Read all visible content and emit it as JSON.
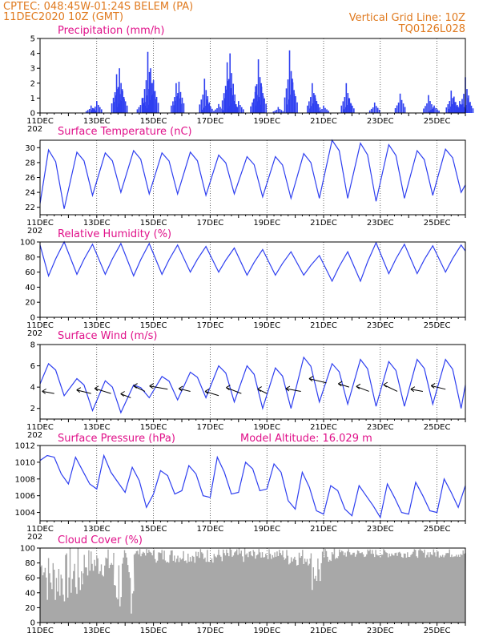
{
  "header": {
    "line1_left": "CPTEC:   048:45W-01:24S   BELEM (PA)",
    "line2_left": "11DEC2020 10Z (GMT)",
    "line1_right": "Vertical Grid Line: 10Z",
    "line2_right": "TQ0126L028"
  },
  "colors": {
    "series": "#2e3ff0",
    "cloud": "#a8a8a8",
    "title": "#e0118a",
    "header": "#e07a1f"
  },
  "x_axis": {
    "day_labels": [
      "11DEC",
      "13DEC",
      "15DEC",
      "17DEC",
      "19DEC",
      "21DEC",
      "23DEC",
      "25DEC"
    ],
    "cutoff_label": "202"
  },
  "chart_data": [
    {
      "id": "precip",
      "type": "bar",
      "title": "Precipitation (mm/h)",
      "ylim": [
        0,
        5
      ],
      "yticks": [
        0,
        1,
        2,
        3,
        4,
        5
      ],
      "days": 15,
      "peaks": [
        {
          "day": 1.8,
          "value": 0.5
        },
        {
          "day": 2.0,
          "value": 0.8
        },
        {
          "day": 2.7,
          "value": 2.6
        },
        {
          "day": 2.8,
          "value": 3.0
        },
        {
          "day": 2.9,
          "value": 1.6
        },
        {
          "day": 3.6,
          "value": 1.0
        },
        {
          "day": 3.8,
          "value": 4.1
        },
        {
          "day": 3.9,
          "value": 3.0
        },
        {
          "day": 4.0,
          "value": 2.2
        },
        {
          "day": 4.8,
          "value": 2.0
        },
        {
          "day": 4.9,
          "value": 2.1
        },
        {
          "day": 5.8,
          "value": 2.3
        },
        {
          "day": 5.9,
          "value": 0.9
        },
        {
          "day": 6.3,
          "value": 0.6
        },
        {
          "day": 6.6,
          "value": 3.4
        },
        {
          "day": 6.7,
          "value": 4.0
        },
        {
          "day": 6.8,
          "value": 1.2
        },
        {
          "day": 7.0,
          "value": 0.8
        },
        {
          "day": 7.6,
          "value": 1.8
        },
        {
          "day": 7.7,
          "value": 3.6
        },
        {
          "day": 7.8,
          "value": 2.0
        },
        {
          "day": 8.4,
          "value": 0.4
        },
        {
          "day": 8.8,
          "value": 4.2
        },
        {
          "day": 8.9,
          "value": 2.3
        },
        {
          "day": 9.6,
          "value": 2.0
        },
        {
          "day": 9.7,
          "value": 1.2
        },
        {
          "day": 10.0,
          "value": 0.5
        },
        {
          "day": 10.8,
          "value": 2.0
        },
        {
          "day": 10.9,
          "value": 1.0
        },
        {
          "day": 11.8,
          "value": 0.7
        },
        {
          "day": 12.7,
          "value": 1.3
        },
        {
          "day": 13.7,
          "value": 1.2
        },
        {
          "day": 13.9,
          "value": 0.5
        },
        {
          "day": 14.5,
          "value": 1.5
        },
        {
          "day": 14.6,
          "value": 1.1
        },
        {
          "day": 14.8,
          "value": 0.8
        },
        {
          "day": 14.9,
          "value": 0.6
        },
        {
          "day": 15.0,
          "value": 2.4
        },
        {
          "day": 15.1,
          "value": 1.0
        }
      ]
    },
    {
      "id": "temp",
      "type": "line",
      "title": "Surface Temperature (nC)",
      "ylim": [
        21,
        31
      ],
      "yticks": [
        22,
        24,
        26,
        28,
        30
      ],
      "days": 15,
      "start_value": 22.5,
      "daily_min": [
        21.8,
        23.6,
        24.0,
        23.8,
        23.8,
        23.6,
        23.8,
        23.4,
        23.2,
        23.2,
        23.2,
        22.8,
        23.2,
        23.6,
        24.0
      ],
      "daily_max": [
        29.7,
        29.4,
        29.3,
        29.6,
        29.3,
        29.4,
        29.0,
        28.8,
        28.8,
        29.2,
        31.2,
        30.6,
        30.4,
        29.6,
        29.8
      ],
      "end_value": 25.0
    },
    {
      "id": "rh",
      "type": "line",
      "title": "Relative Humidity (%)",
      "ylim": [
        0,
        100
      ],
      "yticks": [
        0,
        20,
        40,
        60,
        80,
        100
      ],
      "days": 15,
      "start_value": 96,
      "daily_min": [
        55,
        57,
        57,
        55,
        57,
        60,
        60,
        56,
        56,
        56,
        48,
        48,
        58,
        58,
        60
      ],
      "daily_max": [
        100,
        97,
        98,
        98,
        96,
        94,
        92,
        90,
        87,
        82,
        87,
        99,
        97,
        95,
        96
      ],
      "end_value": 88
    },
    {
      "id": "wind",
      "type": "line",
      "title": "Surface Wind (m/s)",
      "ylim": [
        1,
        8
      ],
      "yticks": [
        2,
        4,
        6,
        8
      ],
      "days": 15,
      "start_value": 4.3,
      "daily_min": [
        3.2,
        1.8,
        1.6,
        3.0,
        2.8,
        3.0,
        2.6,
        2.0,
        2.0,
        2.6,
        2.4,
        2.2,
        2.2,
        2.4,
        2.0
      ],
      "daily_max": [
        6.2,
        4.8,
        4.6,
        4.2,
        5.0,
        5.4,
        6.0,
        6.0,
        5.8,
        6.8,
        6.2,
        6.6,
        6.4,
        6.6,
        6.6
      ],
      "end_value": 4.2,
      "wind_vectors_day": [
        0.5,
        1.8,
        2.5,
        3.2,
        3.7,
        4.5,
        5.3,
        6.3,
        7.1,
        8.0,
        9.2,
        10.1,
        10.9,
        11.6,
        12.6,
        13.5,
        14.3
      ],
      "wind_vectors_level": [
        3.4,
        3.4,
        3.4,
        3.0,
        3.6,
        3.8,
        3.6,
        3.2,
        3.4,
        3.4,
        3.6,
        4.4,
        4.0,
        3.6,
        3.6,
        3.6,
        3.8
      ]
    },
    {
      "id": "pressure",
      "type": "line",
      "title": "Surface Pressure (hPa)",
      "subtitle": "Model Altitude: 16.029 m",
      "ylim": [
        1003,
        1012
      ],
      "yticks": [
        1004,
        1006,
        1008,
        1010,
        1012
      ],
      "days": 15,
      "samples_per_day": 4,
      "values": [
        1010.2,
        1010.8,
        1010.6,
        1008.6,
        1007.4,
        1010.6,
        1009.0,
        1007.4,
        1006.8,
        1010.8,
        1008.8,
        1007.6,
        1006.4,
        1009.4,
        1007.8,
        1004.6,
        1006.2,
        1009.0,
        1008.4,
        1006.2,
        1006.6,
        1009.6,
        1008.6,
        1006.0,
        1005.8,
        1010.6,
        1008.8,
        1006.2,
        1006.4,
        1010.0,
        1009.2,
        1006.6,
        1006.8,
        1009.8,
        1008.8,
        1005.4,
        1004.4,
        1008.8,
        1007.0,
        1004.2,
        1003.8,
        1007.2,
        1006.6,
        1004.4,
        1003.6,
        1007.2,
        1006.0,
        1004.8,
        1003.4,
        1007.4,
        1005.8,
        1004.0,
        1003.8,
        1007.6,
        1006.0,
        1004.2,
        1004.0,
        1008.0,
        1006.4,
        1004.6,
        1007.2
      ]
    },
    {
      "id": "cloud",
      "type": "area",
      "title": "Cloud Cover (%)",
      "ylim": [
        0,
        100
      ],
      "yticks": [
        0,
        20,
        40,
        60,
        80,
        100
      ],
      "days": 15,
      "segments": [
        {
          "day_start": 0.0,
          "day_end": 0.2,
          "base": 75,
          "var": 15
        },
        {
          "day_start": 0.2,
          "day_end": 1.0,
          "base": 60,
          "var": 35
        },
        {
          "day_start": 1.0,
          "day_end": 1.5,
          "base": 65,
          "var": 40
        },
        {
          "day_start": 1.5,
          "day_end": 2.6,
          "base": 80,
          "var": 20
        },
        {
          "day_start": 2.6,
          "day_end": 3.3,
          "base": 55,
          "var": 45
        },
        {
          "day_start": 3.3,
          "day_end": 4.0,
          "base": 94,
          "var": 5
        },
        {
          "day_start": 4.0,
          "day_end": 7.5,
          "base": 90,
          "var": 10
        },
        {
          "day_start": 7.5,
          "day_end": 8.6,
          "base": 92,
          "var": 7
        },
        {
          "day_start": 8.6,
          "day_end": 9.5,
          "base": 88,
          "var": 12
        },
        {
          "day_start": 9.5,
          "day_end": 10.0,
          "base": 72,
          "var": 30
        },
        {
          "day_start": 10.0,
          "day_end": 10.5,
          "base": 90,
          "var": 10
        },
        {
          "day_start": 10.5,
          "day_end": 15.0,
          "base": 93,
          "var": 6
        }
      ]
    }
  ]
}
